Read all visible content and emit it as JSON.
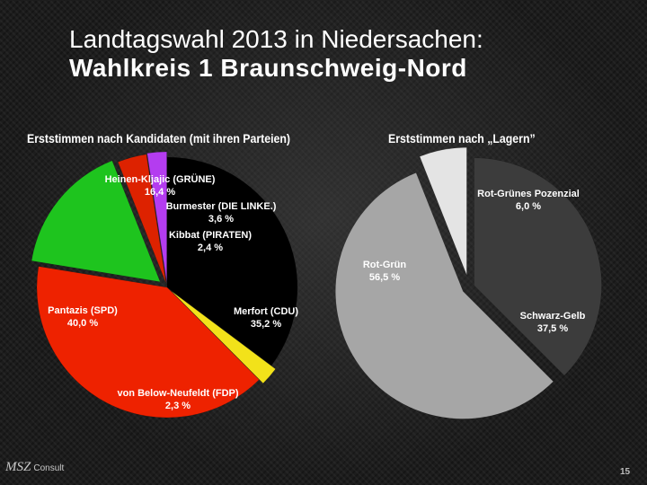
{
  "page": {
    "title_line1": "Landtagswahl 2013 in Niedersachen:",
    "title_line2": "Wahlkreis 1 Braunschweig-Nord",
    "logo_text": "MSZ",
    "logo_sub": "Consult",
    "page_number": "15"
  },
  "chart_data": [
    {
      "type": "pie",
      "title": "Erststimmen nach Kandidaten (mit ihren Parteien)",
      "slices": [
        {
          "name": "Merfort (CDU)",
          "value_label": "35,2 %",
          "value": 35.2,
          "color": "#000000"
        },
        {
          "name": "von Below-Neufeldt (FDP)",
          "value_label": "2,3 %",
          "value": 2.3,
          "color": "#f2e21a"
        },
        {
          "name": "Pantazis (SPD)",
          "value_label": "40,0 %",
          "value": 40.0,
          "color": "#ee2200"
        },
        {
          "name": "Heinen-Kljajic (GRÜNE)",
          "value_label": "16,4 %",
          "value": 16.4,
          "color": "#1ec41e"
        },
        {
          "name": "Burmester (DIE LINKE.)",
          "value_label": "3,6 %",
          "value": 3.6,
          "color": "#dd2200"
        },
        {
          "name": "Kibbat (PIRATEN)",
          "value_label": "2,4 %",
          "value": 2.4,
          "color": "#b43cf0"
        }
      ]
    },
    {
      "type": "pie",
      "title": "Erststimmen nach „Lagern”",
      "slices": [
        {
          "name": "Schwarz-Gelb",
          "value_label": "37,5 %",
          "value": 37.5,
          "color": "#3c3c3c"
        },
        {
          "name": "Rot-Grün",
          "value_label": "56,5 %",
          "value": 56.5,
          "color": "#a6a6a6"
        },
        {
          "name": "Rot-Grünes Pozenzial",
          "value_label": "6,0 %",
          "value": 6.0,
          "color": "#e4e4e4"
        }
      ]
    }
  ]
}
